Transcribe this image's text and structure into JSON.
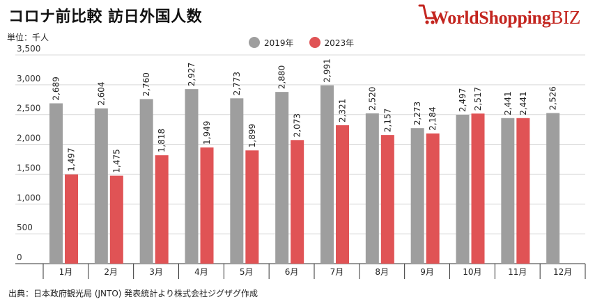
{
  "title": "コロナ前比較 訪日外国人数",
  "logo": {
    "text_main": "WorldShopping",
    "text_biz": "BIZ",
    "icon": "shopping-cart-icon",
    "color": "#c3251f"
  },
  "unit_label": "単位：千人",
  "source": "出典：日本政府観光局 (JNTO) 発表統計より株式会社ジグザグ作成",
  "chart_data": {
    "type": "bar",
    "categories": [
      "1月",
      "2月",
      "3月",
      "4月",
      "5月",
      "6月",
      "7月",
      "8月",
      "9月",
      "10月",
      "11月",
      "12月"
    ],
    "series": [
      {
        "name": "2019年",
        "color": "#9e9e9e",
        "values": [
          2689,
          2604,
          2760,
          2927,
          2773,
          2880,
          2991,
          2520,
          2273,
          2497,
          2441,
          2526
        ],
        "labels": [
          "2,689",
          "2,604",
          "2,760",
          "2,927",
          "2,773",
          "2,880",
          "2,991",
          "2,520",
          "2,273",
          "2,497",
          "2,441",
          "2,526"
        ]
      },
      {
        "name": "2023年",
        "color": "#e05355",
        "values": [
          1497,
          1475,
          1818,
          1949,
          1899,
          2073,
          2321,
          2157,
          2184,
          2517,
          2441,
          null
        ],
        "labels": [
          "1,497",
          "1,475",
          "1,818",
          "1,949",
          "1,899",
          "2,073",
          "2,321",
          "2,157",
          "2,184",
          "2,517",
          "2,441",
          null
        ]
      }
    ],
    "y_ticks": [
      0,
      500,
      1000,
      1500,
      2000,
      2500,
      3000,
      3500
    ],
    "y_tick_labels": [
      "0",
      "500",
      "1,000",
      "1,500",
      "2,000",
      "2,500",
      "3,000",
      "3,500"
    ],
    "ylim": [
      0,
      3500
    ],
    "grid": true,
    "legend_position": "top-center",
    "xlabel": "",
    "ylabel": "単位：千人"
  }
}
